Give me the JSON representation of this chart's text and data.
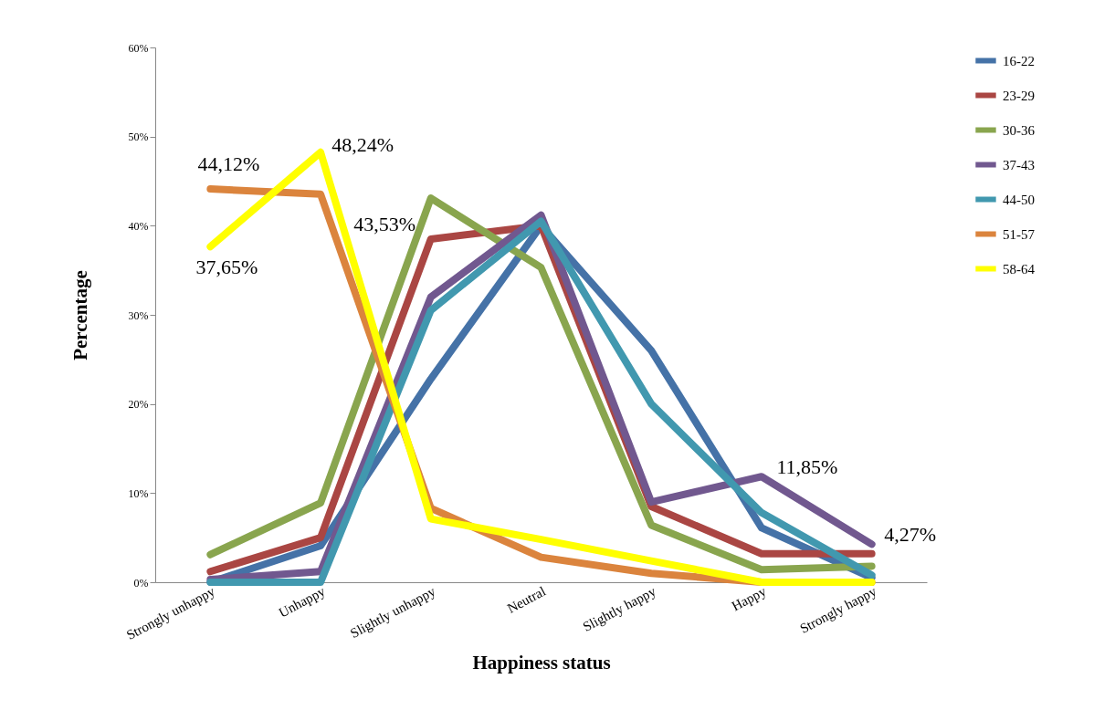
{
  "chart_data": {
    "type": "line",
    "xlabel": "Happiness status",
    "ylabel": "Percentage",
    "categories": [
      "Strongly unhappy",
      "Unhappy",
      "Slightly unhappy",
      "Neutral",
      "Slightly happy",
      "Happy",
      "Strongly happy"
    ],
    "series": [
      {
        "name": "16-22",
        "color": "#4572a7",
        "values": [
          0,
          4.1,
          22.8,
          40,
          26,
          6.1,
          0.5
        ]
      },
      {
        "name": "23-29",
        "color": "#aa4643",
        "values": [
          1.2,
          5,
          38.5,
          40,
          8.5,
          3.2,
          3.2
        ]
      },
      {
        "name": "30-36",
        "color": "#89a54e",
        "values": [
          3.1,
          8.9,
          43.1,
          35.3,
          6.4,
          1.4,
          1.8
        ]
      },
      {
        "name": "37-43",
        "color": "#71588f",
        "values": [
          0.3,
          1.2,
          32,
          41.2,
          9,
          11.85,
          4.27
        ]
      },
      {
        "name": "44-50",
        "color": "#4198af",
        "values": [
          0,
          0,
          30.5,
          40.5,
          20,
          7.8,
          0.8
        ]
      },
      {
        "name": "51-57",
        "color": "#db843d",
        "values": [
          44.12,
          43.53,
          8.3,
          2.8,
          1,
          0,
          0
        ]
      },
      {
        "name": "58-64",
        "color": "#ffff00",
        "values": [
          37.65,
          48.24,
          7.1,
          4.8,
          2.4,
          0,
          0
        ]
      }
    ],
    "ylim": [
      0,
      60
    ],
    "yticks": [
      {
        "value": 0,
        "label": "0%"
      },
      {
        "value": 10,
        "label": "10%"
      },
      {
        "value": 20,
        "label": "20%"
      },
      {
        "value": 30,
        "label": "30%"
      },
      {
        "value": 40,
        "label": "40%"
      },
      {
        "value": 50,
        "label": "50%"
      },
      {
        "value": 60,
        "label": "60%"
      }
    ],
    "annotations": [
      {
        "text": "44,12%",
        "x": "Strongly unhappy",
        "y": 44.12
      },
      {
        "text": "37,65%",
        "x": "Strongly unhappy",
        "y": 37.65
      },
      {
        "text": "48,24%",
        "x": "Unhappy",
        "y": 48.24
      },
      {
        "text": "43,53%",
        "x": "Unhappy",
        "y": 43.53
      },
      {
        "text": "11,85%",
        "x": "Happy",
        "y": 11.85
      },
      {
        "text": "4,27%",
        "x": "Strongly happy",
        "y": 4.27
      }
    ],
    "legend": "right",
    "grid": false,
    "marker": "none",
    "line_style": "solid"
  }
}
